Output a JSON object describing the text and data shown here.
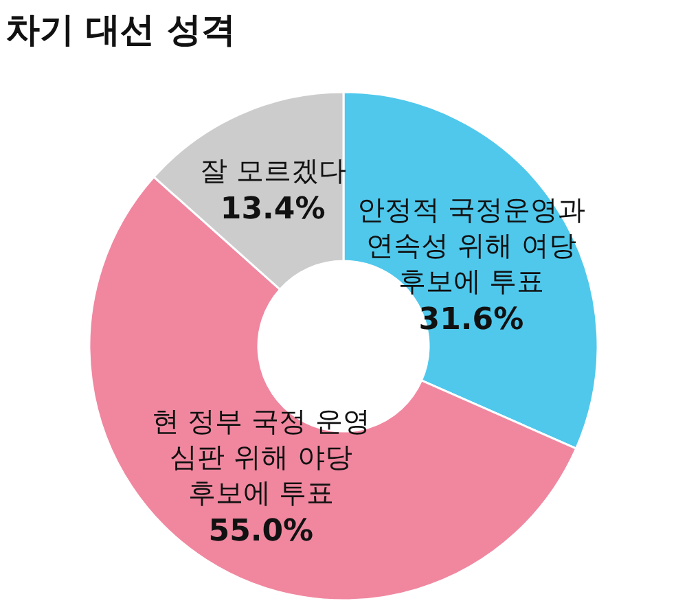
{
  "chart_data": {
    "type": "donut",
    "title": "차기 대선 성격",
    "categories": [
      "안정적 국정운영과 연속성 위해 여당 후보에 투표",
      "현 정부 국정 운영 심판 위해 야당 후보에 투표",
      "잘 모르겠다"
    ],
    "values": [
      31.6,
      55.0,
      13.4
    ],
    "colors": [
      "#4fc8ec",
      "#f0879f",
      "#cccccc"
    ],
    "value_labels": [
      "31.6%",
      "55.0%",
      "13.4%"
    ]
  }
}
